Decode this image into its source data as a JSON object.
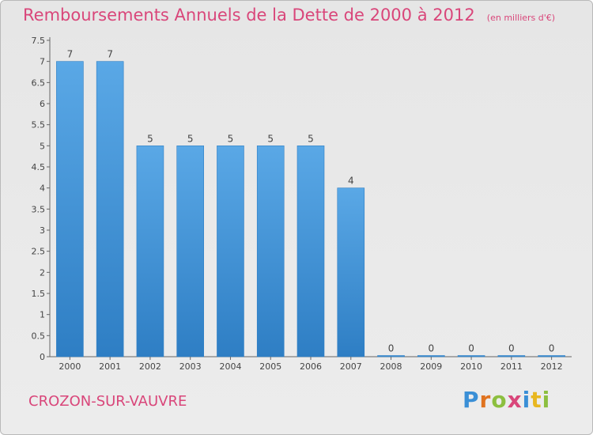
{
  "header": {
    "title": "Remboursements Annuels de la Dette de 2000 à 2012",
    "unit": "(en milliers d'€)"
  },
  "footer": {
    "city": "CROZON-SUR-VAUVRE",
    "logo": [
      "P",
      "r",
      "o",
      "x",
      "i",
      "t",
      "i"
    ],
    "logo_colors": [
      "#3a8fd6",
      "#e0731f",
      "#8cbf3f",
      "#d9467a",
      "#3a8fd6",
      "#e8b720",
      "#8cbf3f"
    ]
  },
  "colors": {
    "bar": "#5aa8e6",
    "bar_dark": "#2e7ec4",
    "axis": "#666666",
    "grid": "#bcbcbc",
    "text": "#444444",
    "accent": "#d9467a"
  },
  "chart_data": {
    "type": "bar",
    "title": "Remboursements Annuels de la Dette de 2000 à 2012",
    "categories": [
      "2000",
      "2001",
      "2002",
      "2003",
      "2004",
      "2005",
      "2006",
      "2007",
      "2008",
      "2009",
      "2010",
      "2011",
      "2012"
    ],
    "values": [
      7,
      7,
      5,
      5,
      5,
      5,
      5,
      4,
      0,
      0,
      0,
      0,
      0
    ],
    "value_labels": [
      "7",
      "7",
      "5",
      "5",
      "5",
      "5",
      "5",
      "4",
      "0",
      "0",
      "0",
      "0",
      "0"
    ],
    "ylim": [
      0,
      7.5
    ],
    "yticks": [
      0,
      0.5,
      1,
      1.5,
      2,
      2.5,
      3,
      3.5,
      4,
      4.5,
      5,
      5.5,
      6,
      6.5,
      7,
      7.5
    ],
    "ytick_labels": [
      "0",
      "0.5",
      "1",
      "1.5",
      "2",
      "2.5",
      "3",
      "3.5",
      "4",
      "4.5",
      "5",
      "5.5",
      "6",
      "6.5",
      "7",
      "7.5"
    ],
    "xlabel": "",
    "ylabel": "",
    "grid": false,
    "legend": false
  }
}
